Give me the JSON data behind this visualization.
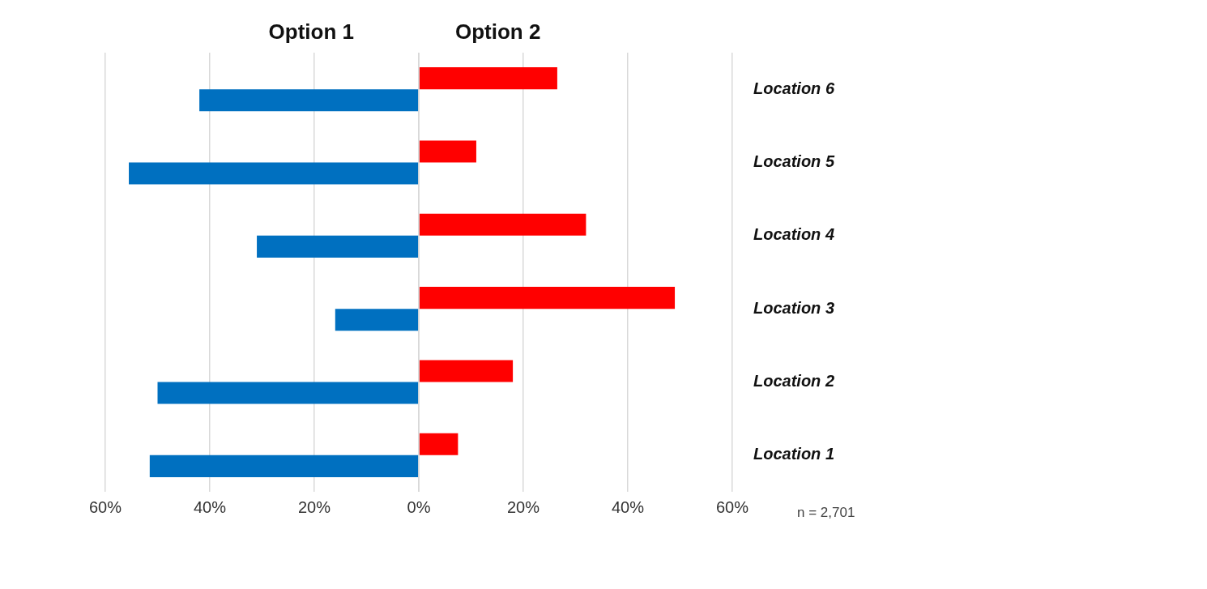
{
  "chart_data": {
    "type": "bar",
    "orientation": "horizontal",
    "categories": [
      "Location 6",
      "Location 5",
      "Location 4",
      "Location 3",
      "Location 2",
      "Location 1"
    ],
    "series": [
      {
        "name": "Option 1",
        "color": "#0070c0",
        "values": [
          -42,
          -55.5,
          -31,
          -16,
          -50,
          -51.5
        ]
      },
      {
        "name": "Option 2",
        "color": "#ff0000",
        "values": [
          26.5,
          11,
          32,
          49,
          18,
          7.5
        ]
      }
    ],
    "xlim": [
      -60,
      60
    ],
    "xticks": [
      {
        "value": -60,
        "label": "60%"
      },
      {
        "value": -40,
        "label": "40%"
      },
      {
        "value": -20,
        "label": "20%"
      },
      {
        "value": 0,
        "label": "0%"
      },
      {
        "value": 20,
        "label": "20%"
      },
      {
        "value": 40,
        "label": "40%"
      },
      {
        "value": 60,
        "label": "60%"
      }
    ],
    "grid": "x",
    "legend": "top",
    "annotations": [
      "n = 2,701"
    ]
  }
}
